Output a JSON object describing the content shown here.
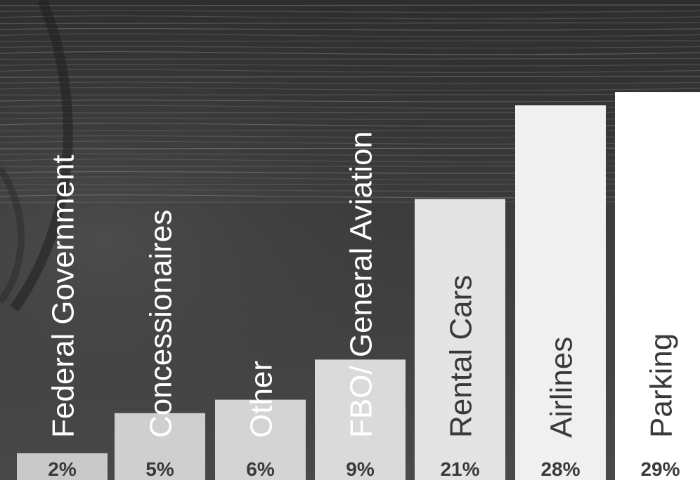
{
  "chart_data": {
    "type": "bar",
    "categories": [
      "Federal Government",
      "Concessionaires",
      "Other",
      "FBO/ General Aviation",
      "Rental Cars",
      "Airlines",
      "Parking"
    ],
    "values": [
      2,
      5,
      6,
      9,
      21,
      28,
      29
    ],
    "value_labels": [
      "2%",
      "5%",
      "6%",
      "9%",
      "21%",
      "28%",
      "29%"
    ],
    "title": "",
    "xlabel": "",
    "ylabel": "",
    "ylim": [
      0,
      30
    ],
    "grid": false,
    "legend": "none",
    "bar_colors": [
      "#c9c9c9",
      "#cfcfcf",
      "#d4d4d4",
      "#dadada",
      "#e4e4e4",
      "#f0f0f0",
      "#ffffff"
    ],
    "category_label_colors": [
      "#ffffff",
      "#ffffff",
      "#ffffff",
      "#ffffff",
      "#3a3a3a",
      "#3a3a3a",
      "#3a3a3a"
    ],
    "value_label_color": "#3a3a3a",
    "background_color": "#3a3a3a"
  }
}
